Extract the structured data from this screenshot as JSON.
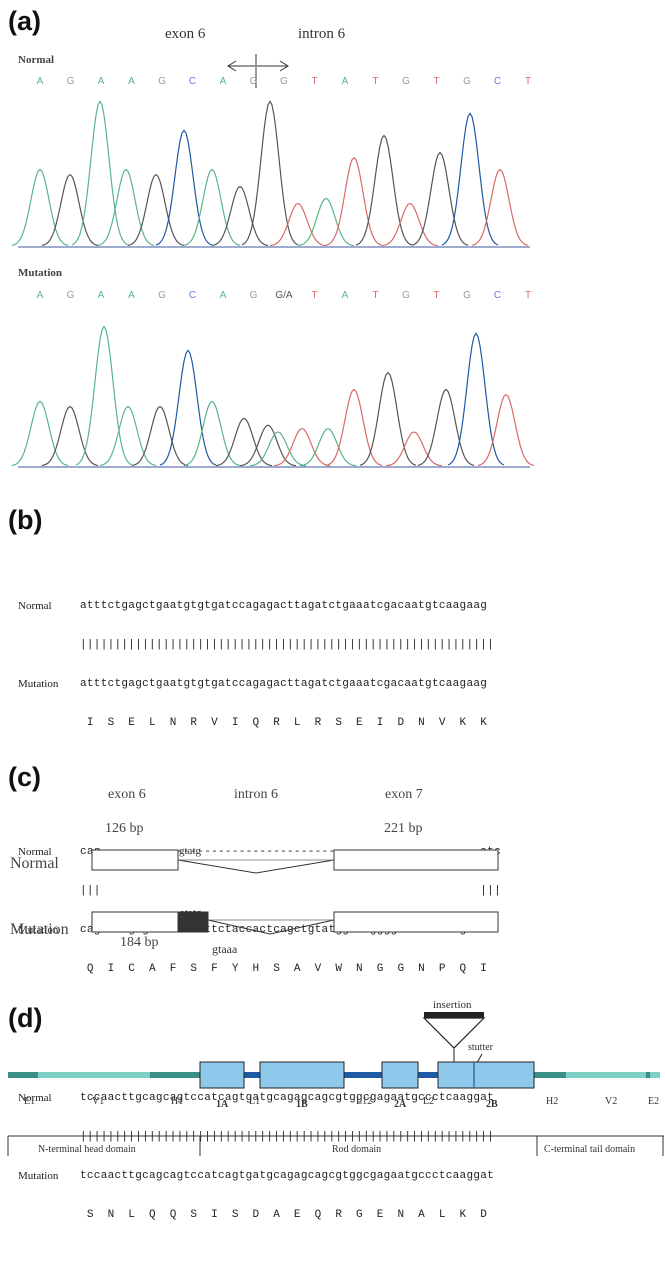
{
  "panel_a": {
    "label": "(a)",
    "exon_label": "exon 6",
    "intron_label": "intron 6",
    "normal": {
      "title": "Normal",
      "bases": [
        "A",
        "G",
        "A",
        "A",
        "G",
        "C",
        "A",
        "G",
        "G",
        "T",
        "A",
        "T",
        "G",
        "T",
        "G",
        "C",
        "T"
      ],
      "colors": [
        "#5ab58a",
        "#9a9a9a",
        "#5ab58a",
        "#5ab58a",
        "#9a9a9a",
        "#5a7fd0",
        "#5ab58a",
        "#9a9a9a",
        "#9a9a9a",
        "#d86a6a",
        "#5ab58a",
        "#d86a6a",
        "#9a9a9a",
        "#d86a6a",
        "#9a9a9a",
        "#5a7fd0",
        "#d86a6a"
      ]
    },
    "mutation": {
      "title": "Mutation",
      "bases": [
        "A",
        "G",
        "A",
        "A",
        "G",
        "C",
        "A",
        "G",
        "G/A",
        "T",
        "A",
        "T",
        "G",
        "T",
        "G",
        "C",
        "T"
      ],
      "colors": [
        "#5ab58a",
        "#9a9a9a",
        "#5ab58a",
        "#5ab58a",
        "#9a9a9a",
        "#5a7fd0",
        "#5ab58a",
        "#9a9a9a",
        "#555555",
        "#d86a6a",
        "#5ab58a",
        "#d86a6a",
        "#9a9a9a",
        "#d86a6a",
        "#9a9a9a",
        "#5a7fd0",
        "#d86a6a"
      ]
    }
  },
  "panel_b": {
    "label": "(b)",
    "normal_label": "Normal",
    "mutation_label": "Mutation",
    "blocks": [
      {
        "normal": "atttctgagctgaatgtgtgatccagagacttagatctgaaatcgacaatgtcaagaag",
        "match": "||||||||||||||||||||||||||||||||||||||||||||||||||||||||||||",
        "mutation": "atttctgagctgaatgtgtgatccagagacttagatctgaaatcgacaatgtcaagaag",
        "aa": " I  S  E  L  N  R  V  I  Q  R  L  R  S  E  I  D  N  V  K  K"
      },
      {
        "normal": "cag-------------------------------------------------------atc",
        "match": "|||                                                       |||",
        "mutation": "cagatatgtgctttctccttctaccactcagctgtatggaatggggtaaccctcagatc",
        "aa": " Q  I  C  A  F  S  F  Y  H  S  A  V  W  N  G  G  N  P  Q  I"
      },
      {
        "normal": "tccaacttgcagcagtccatcagtgatgcagagcagcgtggcgagaatgccctcaaggat",
        "match": "||||||||||||||||||||||||||||||||||||||||||||||||||||||||||||",
        "mutation": "tccaacttgcagcagtccatcagtgatgcagagcagcgtggcgagaatgccctcaaggat",
        "aa": " S  N  L  Q  Q  S  I  S  D  A  E  Q  R  G  E  N  A  L  K  D"
      }
    ]
  },
  "panel_c": {
    "label": "(c)",
    "exon6": "exon 6",
    "intron6": "intron 6",
    "exon7": "exon 7",
    "bp126": "126 bp",
    "bp221": "221 bp",
    "bp184": "184 bp",
    "normal": "Normal",
    "mutation": "Mutation",
    "gtatg_normal": "gtatg",
    "atatg": "atatg",
    "gtaaa": "gtaaa"
  },
  "panel_d": {
    "label": "(d)",
    "insertion": "insertion",
    "stutter": "stutter",
    "segments": [
      "E1",
      "V1",
      "H1",
      "1A",
      "L1",
      "1B",
      "L12",
      "2A",
      "L2",
      "2B",
      "H2",
      "V2",
      "E2"
    ],
    "domains": [
      "N-terminal head domain",
      "Rod domain",
      "C-terminal tail domain"
    ],
    "rod_color": "#8ec9ec",
    "line_color": "#3a8f86"
  }
}
